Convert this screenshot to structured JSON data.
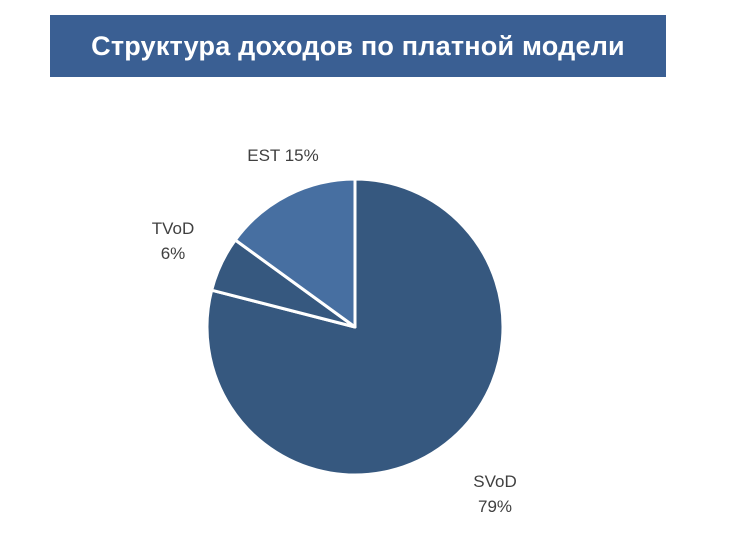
{
  "header": {
    "title": "Структура доходов по платной модели"
  },
  "colors": {
    "banner": "#3a5f93",
    "slice_main": "#36587f",
    "slice_alt": "#476fa1",
    "separator": "#ffffff"
  },
  "chart_data": {
    "type": "pie",
    "title": "Структура доходов по платной модели",
    "slices": [
      {
        "name": "SVoD",
        "value": 79,
        "label_lines": [
          "SVoD",
          "79%"
        ]
      },
      {
        "name": "TVoD",
        "value": 6,
        "label_lines": [
          "TVoD",
          "6%"
        ]
      },
      {
        "name": "EST",
        "value": 15,
        "label_lines": [
          "EST 15%"
        ]
      }
    ],
    "legend": "none",
    "data_labels": "outside"
  }
}
